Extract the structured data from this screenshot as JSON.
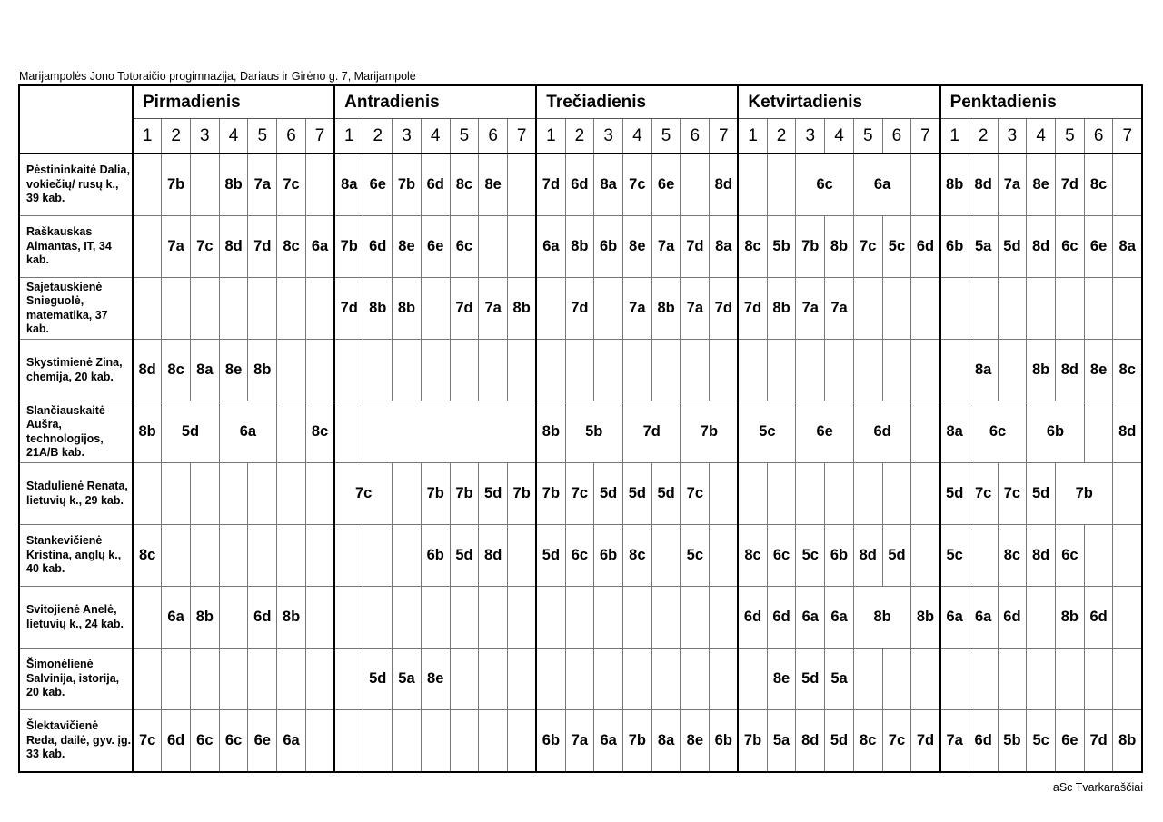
{
  "school": "Marijampolės Jono Totoraičio progimnazija, Dariaus ir Girėno g. 7, Marijampolė",
  "footer": "aSc Tvarkaraščiai",
  "days": [
    "Pirmadienis",
    "Antradienis",
    "Trečiadienis",
    "Ketvirtadienis",
    "Penktadienis"
  ],
  "periods": [
    "1",
    "2",
    "3",
    "4",
    "5",
    "6",
    "7"
  ],
  "teachers": [
    {
      "name": "Pėstininkaitė Dalia, vokiečių/ rusų k., 39 kab.",
      "days": [
        [
          "",
          "7b",
          "",
          "8b",
          "7a",
          "7c",
          ""
        ],
        [
          "8a",
          "6e",
          "7b",
          "6d",
          "8c",
          "8e",
          ""
        ],
        [
          "7d",
          "6d",
          "8a",
          "7c",
          "6e",
          "",
          "8d"
        ],
        [
          "",
          "",
          {
            "t": "6c",
            "span": 2
          },
          {
            "t": "6a",
            "span": 2
          },
          ""
        ],
        [
          "8b",
          "8d",
          "7a",
          "8e",
          "7d",
          "8c",
          ""
        ]
      ]
    },
    {
      "name": "Raškauskas Almantas, IT, 34 kab.",
      "days": [
        [
          "",
          "7a",
          "7c",
          "8d",
          "7d",
          "8c",
          "6a"
        ],
        [
          "7b",
          "6d",
          "8e",
          "6e",
          "6c",
          "",
          ""
        ],
        [
          "6a",
          "8b",
          "6b",
          "8e",
          "7a",
          "7d",
          "8a"
        ],
        [
          "8c",
          "5b",
          "7b",
          "8b",
          "7c",
          "5c",
          "6d"
        ],
        [
          "6b",
          "5a",
          "5d",
          "8d",
          "6c",
          "6e",
          "8a"
        ]
      ]
    },
    {
      "name": "Sajetauskienė Snieguolė, matematika, 37 kab.",
      "days": [
        [
          "",
          "",
          "",
          "",
          "",
          "",
          ""
        ],
        [
          "7d",
          "8b",
          "8b",
          "",
          "7d",
          "7a",
          "8b"
        ],
        [
          "",
          "7d",
          "",
          "7a",
          "8b",
          "7a",
          "7d"
        ],
        [
          "7d",
          "8b",
          "7a",
          "7a",
          "",
          "",
          ""
        ],
        [
          "",
          "",
          "",
          "",
          "",
          "",
          ""
        ]
      ]
    },
    {
      "name": "Skystimienė Zina, chemija, 20 kab.",
      "days": [
        [
          "8d",
          "8c",
          "8a",
          "8e",
          "8b",
          "",
          ""
        ],
        [
          "",
          "",
          "",
          "",
          "",
          "",
          ""
        ],
        [
          "",
          "",
          "",
          "",
          "",
          "",
          ""
        ],
        [
          "",
          "",
          "",
          "",
          "",
          "",
          ""
        ],
        [
          "",
          "8a",
          "",
          "8b",
          "8d",
          "8e",
          "8c"
        ]
      ]
    },
    {
      "name": "Slančiauskaitė Aušra, technologijos, 21A/B kab.",
      "days": [
        [
          "8b",
          {
            "t": "5d",
            "span": 2
          },
          {
            "t": "6a",
            "span": 2
          },
          "",
          "8c"
        ],
        [
          "",
          {
            "t": "",
            "span": 6
          }
        ],
        [
          "8b",
          {
            "t": "5b",
            "span": 2
          },
          {
            "t": "7d",
            "span": 2
          },
          {
            "t": "7b",
            "span": 2
          }
        ],
        [
          {
            "t": "5c",
            "span": 2
          },
          {
            "t": "6e",
            "span": 2
          },
          {
            "t": "6d",
            "span": 2
          },
          ""
        ],
        [
          "8a",
          {
            "t": "6c",
            "span": 2
          },
          {
            "t": "6b",
            "span": 2
          },
          "",
          "8d"
        ]
      ]
    },
    {
      "name": "Stadulienė Renata, lietuvių k., 29 kab.",
      "days": [
        [
          "",
          "",
          "",
          "",
          "",
          "",
          ""
        ],
        [
          {
            "t": "7c",
            "span": 2
          },
          "",
          "7b",
          "7b",
          "5d",
          "7b"
        ],
        [
          "7b",
          "7c",
          "5d",
          "5d",
          "5d",
          "7c",
          ""
        ],
        [
          "",
          "",
          "",
          "",
          "",
          "",
          ""
        ],
        [
          "5d",
          "7c",
          "7c",
          "5d",
          {
            "t": "7b",
            "span": 2
          },
          ""
        ]
      ]
    },
    {
      "name": "Stankevičienė Kristina, anglų k., 40 kab.",
      "days": [
        [
          "8c",
          "",
          "",
          "",
          "",
          "",
          ""
        ],
        [
          "",
          "",
          "",
          "6b",
          "5d",
          "8d",
          ""
        ],
        [
          "5d",
          "6c",
          "6b",
          "8c",
          "",
          "5c",
          ""
        ],
        [
          "8c",
          "6c",
          "5c",
          "6b",
          "8d",
          "5d",
          ""
        ],
        [
          "5c",
          "",
          "8c",
          "8d",
          "6c",
          "",
          ""
        ]
      ]
    },
    {
      "name": "Svitojienė Anelė, lietuvių k., 24 kab.",
      "days": [
        [
          "",
          "6a",
          "8b",
          "",
          "6d",
          "8b",
          ""
        ],
        [
          "",
          "",
          "",
          "",
          "",
          "",
          ""
        ],
        [
          "",
          "",
          "",
          "",
          "",
          "",
          ""
        ],
        [
          "6d",
          "6d",
          "6a",
          "6a",
          {
            "t": "8b",
            "span": 2
          },
          "8b"
        ],
        [
          "6a",
          "6a",
          "6d",
          "",
          "8b",
          "6d",
          ""
        ]
      ]
    },
    {
      "name": "Šimonėlienė Salvinija, istorija, 20 kab.",
      "days": [
        [
          "",
          "",
          "",
          "",
          "",
          "",
          ""
        ],
        [
          "",
          "5d",
          "5a",
          "8e",
          "",
          "",
          ""
        ],
        [
          "",
          "",
          "",
          "",
          "",
          "",
          ""
        ],
        [
          "",
          "8e",
          "5d",
          "5a",
          "",
          "",
          ""
        ],
        [
          "",
          "",
          "",
          "",
          "",
          "",
          ""
        ]
      ]
    },
    {
      "name": "Šlektavičienė Reda, dailė, gyv. įg. 33 kab.",
      "days": [
        [
          "7c",
          "6d",
          "6c",
          "6c",
          "6e",
          "6a",
          ""
        ],
        [
          "",
          "",
          "",
          "",
          "",
          "",
          ""
        ],
        [
          "6b",
          "7a",
          "6a",
          "7b",
          "8a",
          "8e",
          "6b"
        ],
        [
          "7b",
          "5a",
          "8d",
          "5d",
          "8c",
          "7c",
          "7d"
        ],
        [
          "7a",
          "6d",
          "5b",
          "5c",
          "6e",
          "7d",
          "8b"
        ]
      ]
    }
  ]
}
